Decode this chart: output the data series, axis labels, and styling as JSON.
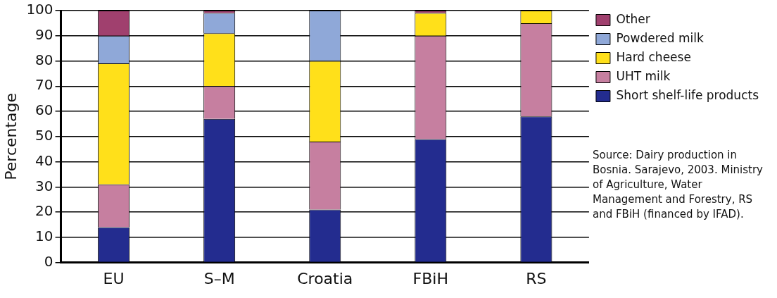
{
  "chart_data": {
    "type": "bar",
    "stacked": true,
    "ylabel": "Percentage",
    "categories": [
      "EU",
      "S–M",
      "Croatia",
      "FBiH",
      "RS"
    ],
    "series": [
      {
        "name": "Short shelf-life products",
        "color": "#232c8f",
        "values": [
          14,
          57,
          21,
          49,
          58
        ]
      },
      {
        "name": "UHT milk",
        "color": "#c67fa0",
        "values": [
          17,
          13,
          27,
          41,
          37
        ]
      },
      {
        "name": "Hard cheese",
        "color": "#ffe01a",
        "values": [
          48,
          21,
          32,
          9,
          5
        ]
      },
      {
        "name": "Powdered milk",
        "color": "#8fa8d8",
        "values": [
          11,
          8,
          20,
          0,
          0
        ]
      },
      {
        "name": "Other",
        "color": "#a0406e",
        "values": [
          10,
          1,
          0,
          1,
          0
        ]
      }
    ],
    "ylim": [
      0,
      100
    ],
    "yticks": [
      0,
      10,
      20,
      30,
      40,
      50,
      60,
      70,
      80,
      90,
      100
    ],
    "grid": "y",
    "legend": "top right",
    "annotations": [
      "Source: Dairy production in Bosnia. Sarajevo, 2003. Ministry of Agriculture, Water Management and Forestry, RS and FBiH (financed by IFAD)."
    ]
  }
}
